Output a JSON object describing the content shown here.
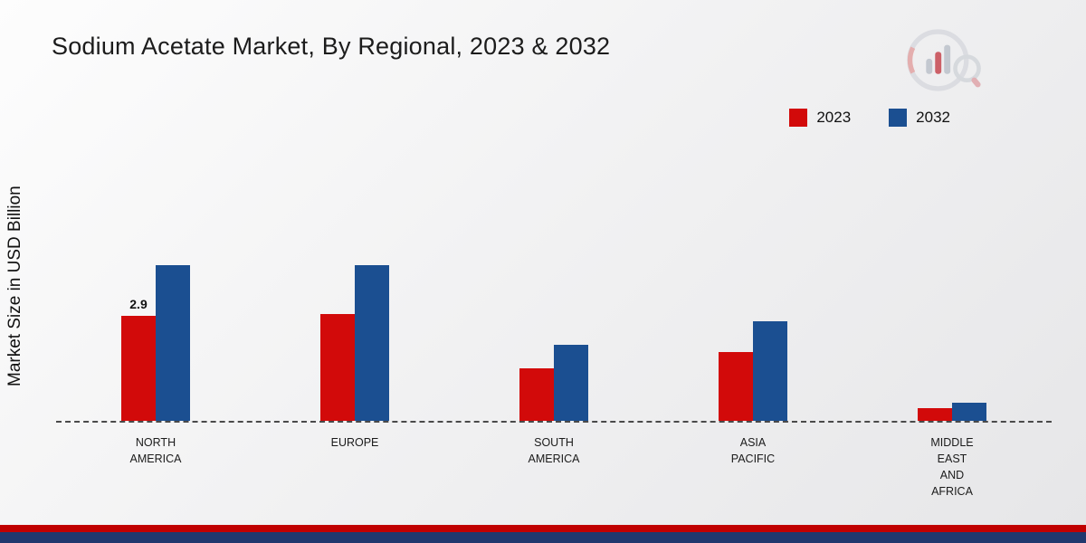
{
  "page": {
    "title": "Sodium Acetate Market, By Regional, 2023 & 2032",
    "y_axis_label": "Market Size in USD Billion"
  },
  "colors": {
    "series_2023": "#d20a0a",
    "series_2032": "#1b4f91",
    "footer_red": "#c00000",
    "footer_navy": "#20386e",
    "baseline": "#4a4a4a"
  },
  "chart_data": {
    "type": "bar",
    "title": "Sodium Acetate Market, By Regional, 2023 & 2032",
    "ylabel": "Market Size in USD Billion",
    "categories": [
      "NORTH AMERICA",
      "EUROPE",
      "SOUTH AMERICA",
      "ASIA PACIFIC",
      "MIDDLE EAST AND AFRICA"
    ],
    "category_display": [
      "NORTH\nAMERICA",
      "EUROPE",
      "SOUTH\nAMERICA",
      "ASIA\nPACIFIC",
      "MIDDLE\nEAST\nAND\nAFRICA"
    ],
    "series": [
      {
        "name": "2023",
        "color": "#d20a0a",
        "values": [
          2.9,
          2.95,
          1.45,
          1.9,
          0.35
        ],
        "data_labels": [
          "2.9",
          null,
          null,
          null,
          null
        ]
      },
      {
        "name": "2032",
        "color": "#1b4f91",
        "values": [
          4.3,
          4.3,
          2.1,
          2.75,
          0.5
        ],
        "data_labels": [
          null,
          null,
          null,
          null,
          null
        ]
      }
    ],
    "ylim": [
      0,
      7
    ],
    "grid": false,
    "legend_position": "top-right",
    "baseline_value": 0,
    "units": "USD Billion"
  }
}
